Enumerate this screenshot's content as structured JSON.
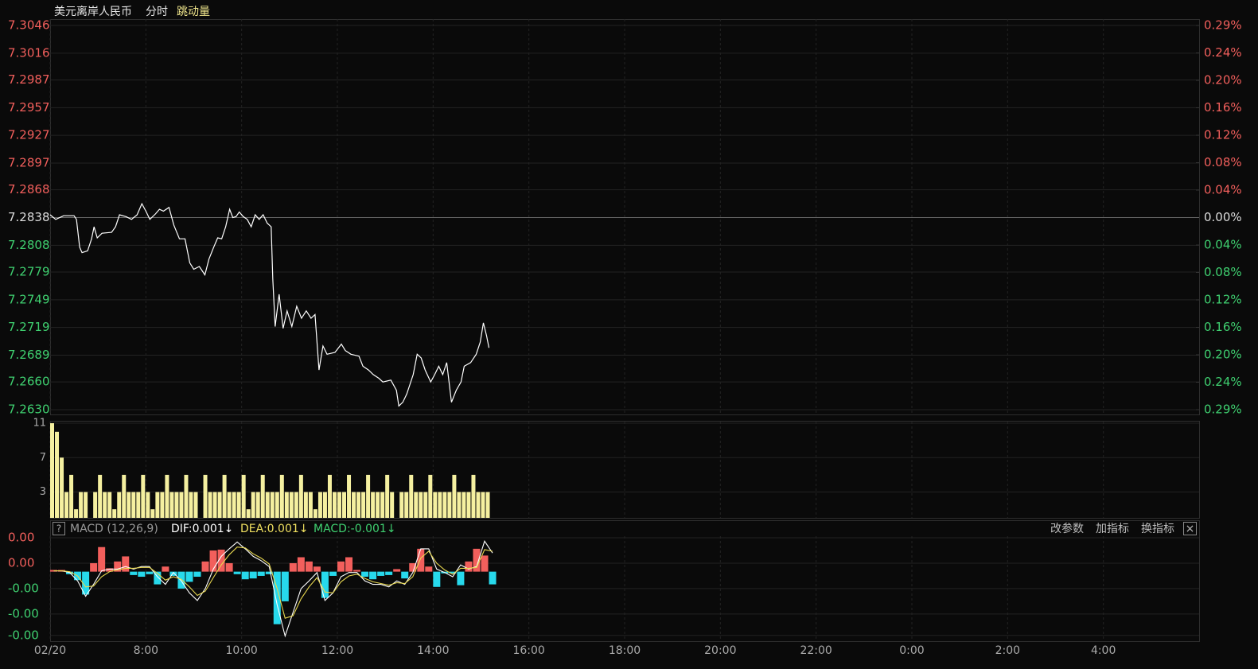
{
  "toolbar": {
    "title": "美元离岸人民币",
    "tabs": [
      "分时",
      "跳动量"
    ]
  },
  "macd_header": {
    "help": "?",
    "legend": [
      {
        "text": "MACD (12,26,9)",
        "color": "#9a9a9a"
      },
      {
        "text": "DIF:0.001↓",
        "color": "#ffffff"
      },
      {
        "text": "DEA:0.001↓",
        "color": "#f0e060"
      },
      {
        "text": "MACD:-0.001↓",
        "color": "#3fd070"
      }
    ],
    "buttons": [
      "改参数",
      "加指标",
      "换指标"
    ],
    "close": "×"
  },
  "chart_data": [
    {
      "type": "line",
      "color": "#ffffff",
      "grid": true,
      "xlim": [
        0,
        1440
      ],
      "x": [
        0,
        7,
        17,
        30,
        33,
        37,
        40,
        47,
        52,
        55,
        59,
        65,
        77,
        82,
        87,
        95,
        102,
        109,
        115,
        120,
        125,
        132,
        137,
        142,
        149,
        155,
        162,
        169,
        175,
        180,
        187,
        194,
        199,
        205,
        210,
        215,
        220,
        225,
        229,
        233,
        237,
        242,
        247,
        252,
        257,
        262,
        267,
        272,
        277,
        279,
        282,
        287,
        292,
        297,
        303,
        309,
        315,
        321,
        327,
        332,
        337,
        342,
        347,
        357,
        365,
        370,
        377,
        387,
        392,
        399,
        405,
        412,
        417,
        427,
        434,
        437,
        442,
        447,
        455,
        460,
        465,
        470,
        477,
        482,
        487,
        492,
        497,
        503,
        509,
        515,
        519,
        527,
        534,
        539,
        543,
        547,
        550
      ],
      "values": [
        7.2841,
        7.2836,
        7.284,
        7.284,
        7.2836,
        7.2806,
        7.28,
        7.2802,
        7.2815,
        7.2828,
        7.2816,
        7.2821,
        7.2822,
        7.2828,
        7.2841,
        7.2839,
        7.2836,
        7.2841,
        7.2853,
        7.2845,
        7.2836,
        7.2842,
        7.2847,
        7.2845,
        7.2849,
        7.283,
        7.2815,
        7.2815,
        7.2789,
        7.2782,
        7.2785,
        7.2776,
        7.2793,
        7.2806,
        7.2816,
        7.2815,
        7.2828,
        7.2847,
        7.2838,
        7.2839,
        7.2844,
        7.2839,
        7.2836,
        7.2828,
        7.2841,
        7.2836,
        7.2841,
        7.2832,
        7.2828,
        7.2772,
        7.272,
        7.2755,
        7.2718,
        7.2737,
        7.272,
        7.2742,
        7.2729,
        7.2737,
        7.2729,
        7.2733,
        7.2673,
        7.2699,
        7.269,
        7.2692,
        7.2701,
        7.2694,
        7.269,
        7.2688,
        7.2677,
        7.2673,
        7.2668,
        7.2664,
        7.266,
        7.2662,
        7.2651,
        7.2634,
        7.2638,
        7.2647,
        7.2668,
        7.269,
        7.2686,
        7.2673,
        7.266,
        7.2668,
        7.2677,
        7.2668,
        7.2681,
        7.2638,
        7.2651,
        7.266,
        7.2677,
        7.2681,
        7.269,
        7.2703,
        7.2724,
        7.271,
        7.2697
      ],
      "ylim": [
        7.263,
        7.3046
      ],
      "yticks": [
        7.3046,
        7.3016,
        7.2987,
        7.2957,
        7.2927,
        7.2897,
        7.2868,
        7.2838,
        7.2808,
        7.2779,
        7.2749,
        7.2719,
        7.2689,
        {
          "value": 7.266,
          "label": "7.2660"
        },
        {
          "value": 7.263,
          "label": "7.2630"
        }
      ],
      "y2lim": [
        -0.2856,
        0.2856
      ],
      "y2ticks": [
        {
          "value": 0.2856,
          "label": "0.29%"
        },
        {
          "value": 0.2448,
          "label": "0.24%"
        },
        {
          "value": 0.204,
          "label": "0.20%"
        },
        {
          "value": 0.1632,
          "label": "0.16%"
        },
        {
          "value": 0.1224,
          "label": "0.12%"
        },
        {
          "value": 0.0816,
          "label": "0.08%"
        },
        {
          "value": 0.0408,
          "label": "0.04%"
        },
        {
          "value": 0,
          "label": "0.00%"
        },
        {
          "value": -0.0408,
          "label": "0.04%"
        },
        {
          "value": -0.0816,
          "label": "0.08%"
        },
        {
          "value": -0.1224,
          "label": "0.12%"
        },
        {
          "value": -0.1632,
          "label": "0.16%"
        },
        {
          "value": -0.204,
          "label": "0.20%"
        },
        {
          "value": -0.2448,
          "label": "0.24%"
        },
        {
          "value": -0.2856,
          "label": "0.29%"
        }
      ],
      "up_color": "#f25f5c",
      "down_color": "#3fd070",
      "flat_color": "#dddddd"
    },
    {
      "type": "bar",
      "color": "#f5f0a0",
      "grid": true,
      "xlim": [
        0,
        1440
      ],
      "x": [
        0,
        6,
        12,
        18,
        24,
        30,
        36,
        42,
        48,
        54,
        60,
        66,
        72,
        78,
        84,
        90,
        96,
        102,
        108,
        114,
        120,
        126,
        132,
        138,
        144,
        150,
        156,
        162,
        168,
        174,
        180,
        186,
        192,
        198,
        204,
        210,
        216,
        222,
        228,
        234,
        240,
        246,
        252,
        258,
        264,
        270,
        276,
        282,
        288,
        294,
        300,
        306,
        312,
        318,
        324,
        330,
        336,
        342,
        348,
        354,
        360,
        366,
        372,
        378,
        384,
        390,
        396,
        402,
        408,
        414,
        420,
        426,
        432,
        438,
        444,
        450,
        456,
        462,
        468,
        474,
        480,
        486,
        492,
        498,
        504,
        510,
        516,
        522,
        528,
        534,
        540,
        546
      ],
      "values": [
        11,
        10,
        7,
        3,
        5,
        1,
        3,
        3,
        0,
        3,
        5,
        3,
        3,
        1,
        3,
        5,
        3,
        3,
        3,
        5,
        3,
        1,
        3,
        3,
        5,
        3,
        3,
        3,
        5,
        3,
        3,
        0,
        5,
        3,
        3,
        3,
        5,
        3,
        3,
        3,
        5,
        1,
        3,
        3,
        5,
        3,
        3,
        3,
        5,
        3,
        3,
        3,
        5,
        3,
        3,
        1,
        3,
        3,
        5,
        3,
        3,
        3,
        5,
        3,
        3,
        3,
        5,
        3,
        3,
        3,
        5,
        3,
        0,
        3,
        3,
        5,
        3,
        3,
        3,
        5,
        3,
        3,
        3,
        3,
        5,
        3,
        3,
        3,
        5,
        3,
        3,
        3
      ],
      "ylim": [
        0,
        11
      ],
      "yticks": [
        3,
        7,
        11
      ]
    },
    {
      "type": "macd",
      "grid": true,
      "xlim": [
        0,
        1440
      ],
      "xticks": [
        {
          "value": 0,
          "label": "02/20"
        },
        {
          "value": 120,
          "label": "8:00"
        },
        {
          "value": 240,
          "label": "10:00"
        },
        {
          "value": 360,
          "label": "12:00"
        },
        {
          "value": 480,
          "label": "14:00"
        },
        {
          "value": 600,
          "label": "16:00"
        },
        {
          "value": 720,
          "label": "18:00"
        },
        {
          "value": 840,
          "label": "20:00"
        },
        {
          "value": 960,
          "label": "22:00"
        },
        {
          "value": 1080,
          "label": "0:00"
        },
        {
          "value": 1200,
          "label": "2:00"
        },
        {
          "value": 1320,
          "label": "4:00"
        }
      ],
      "x": [
        0,
        10,
        20,
        30,
        40,
        50,
        60,
        70,
        80,
        90,
        100,
        110,
        120,
        130,
        140,
        150,
        160,
        170,
        180,
        190,
        200,
        210,
        220,
        230,
        240,
        250,
        260,
        270,
        280,
        290,
        300,
        310,
        320,
        330,
        340,
        350,
        360,
        370,
        380,
        390,
        400,
        410,
        420,
        430,
        440,
        450,
        460,
        470,
        480,
        490,
        500,
        510,
        520,
        530,
        540,
        550
      ],
      "series": [
        {
          "color": "#ffffff",
          "values": [
            4e-05,
            4e-05,
            -4e-05,
            -0.00044,
            -0.00116,
            -0.0006,
            4e-05,
            0.00012,
            0.00012,
            0.00024,
            0.00012,
            0.00024,
            0.00024,
            -0.00024,
            -0.0006,
            -4e-05,
            -0.00044,
            -0.001,
            -0.00136,
            -0.0008,
            0.00012,
            0.00072,
            0.00108,
            0.0014,
            0.00108,
            0.00072,
            0.00052,
            0.00024,
            -0.00156,
            -0.00304,
            -0.00192,
            -0.0008,
            -0.00044,
            -4e-05,
            -0.00136,
            -0.001,
            -0.00024,
            -4e-05,
            -4e-05,
            -0.00044,
            -0.0006,
            -0.0006,
            -0.00072,
            -0.00044,
            -0.0006,
            -4e-05,
            0.00108,
            0.00108,
            0.00012,
            -4e-05,
            -0.00024,
            0.00032,
            0.00012,
            0.00024,
            0.00144,
            0.00088
          ]
        },
        {
          "color": "#e8d850",
          "values": [
            4e-05,
            4e-05,
            0,
            -0.0002,
            -0.00072,
            -0.00068,
            -0.00024,
            0,
            8e-05,
            0.00016,
            0.00016,
            0.0002,
            0.0002,
            -8e-05,
            -0.0004,
            -0.00024,
            -0.00036,
            -0.00072,
            -0.00112,
            -0.00092,
            -0.00028,
            0.00032,
            0.0008,
            0.00116,
            0.00112,
            0.00084,
            0.00064,
            0.00036,
            -0.0008,
            -0.0022,
            -0.00208,
            -0.00128,
            -0.00072,
            -0.00028,
            -0.00096,
            -0.001,
            -0.00048,
            -0.0002,
            -0.00012,
            -0.00032,
            -0.00048,
            -0.00056,
            -0.00064,
            -0.00052,
            -0.00056,
            -0.00024,
            0.00064,
            0.00096,
            0.0004,
            8e-05,
            -0.00012,
            0.00016,
            0.00016,
            0.0002,
            0.00104,
            0.00096
          ]
        }
      ],
      "histogram": {
        "up_color": "#f25f5c",
        "down_color": "#27d9ec",
        "values": [
          8e-05,
          8e-05,
          -0.00012,
          -0.0004,
          -0.00108,
          0.0004,
          0.00116,
          0.00016,
          0.00048,
          0.00072,
          -0.00016,
          -0.00024,
          -0.00012,
          -0.0006,
          0.00024,
          -0.0002,
          -0.0008,
          -0.00048,
          -0.00024,
          0.00048,
          0.001,
          0.00104,
          0.0004,
          -0.00012,
          -0.00036,
          -0.00032,
          -0.0002,
          -0.00012,
          -0.00248,
          -0.0014,
          0.0004,
          0.00068,
          0.00048,
          0.00024,
          -0.00124,
          -0.0002,
          0.00048,
          0.00068,
          8e-05,
          -0.00024,
          -0.00036,
          -0.0002,
          -0.00016,
          0.00012,
          -0.00032,
          0.0004,
          0.00108,
          0.00024,
          -0.00072,
          -8e-05,
          -8e-05,
          -0.00064,
          0.00048,
          0.00108,
          0.00076,
          -0.0006
        ]
      },
      "ylim": [
        -0.00328,
        0.0016
      ],
      "yticks": [
        {
          "value": 0.0016,
          "label": "0.00"
        },
        {
          "value": 0.0004,
          "label": "0.00"
        },
        {
          "value": -0.0008,
          "label": "-0.00"
        },
        {
          "value": -0.002,
          "label": "-0.00"
        },
        {
          "value": -0.00301,
          "label": "-0.00"
        }
      ],
      "up_color": "#f25f5c",
      "down_color": "#3fd070"
    }
  ]
}
